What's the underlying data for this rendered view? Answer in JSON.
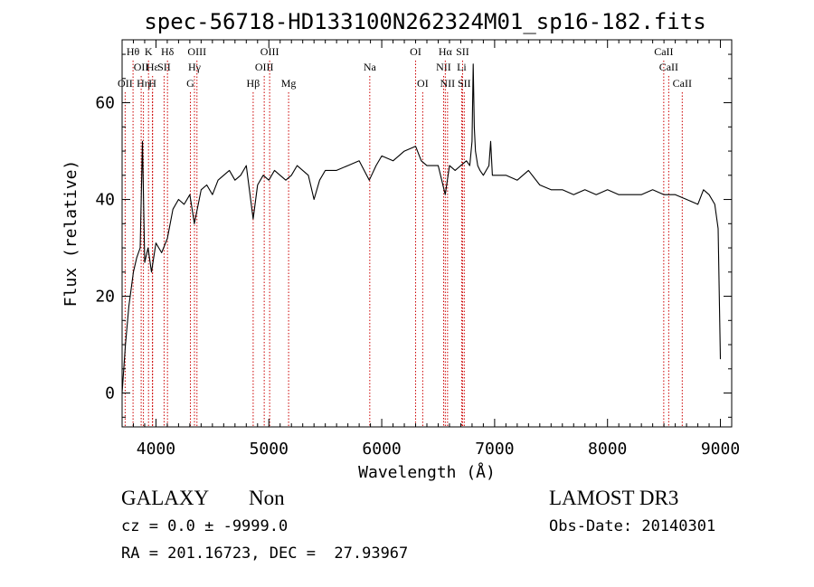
{
  "chart_data": {
    "type": "line",
    "title": "spec-56718-HD133100N262324M01_sp16-182.fits",
    "xlabel": "Wavelength (Å)",
    "ylabel": "Flux (relative)",
    "xlim": [
      3700,
      9100
    ],
    "ylim": [
      -7,
      73
    ],
    "xticks": [
      4000,
      5000,
      6000,
      7000,
      8000,
      9000
    ],
    "yticks": [
      0,
      20,
      40,
      60
    ],
    "grid": false,
    "legend": "none",
    "line_color": "#000000",
    "marker_color": "#cc0000",
    "series": [
      {
        "x": [
          3700,
          3730,
          3760,
          3800,
          3830,
          3860,
          3880,
          3900,
          3930,
          3960,
          4000,
          4050,
          4101,
          4150,
          4200,
          4250,
          4300,
          4340,
          4400,
          4450,
          4500,
          4550,
          4600,
          4650,
          4700,
          4750,
          4800,
          4861,
          4900,
          4950,
          5000,
          5050,
          5100,
          5150,
          5200,
          5250,
          5300,
          5350,
          5400,
          5450,
          5500,
          5600,
          5700,
          5800,
          5890,
          5950,
          6000,
          6100,
          6200,
          6300,
          6350,
          6400,
          6500,
          6563,
          6600,
          6650,
          6700,
          6750,
          6780,
          6800,
          6810,
          6820,
          6830,
          6850,
          6870,
          6900,
          6950,
          6965,
          6980,
          7000,
          7100,
          7200,
          7300,
          7400,
          7500,
          7600,
          7700,
          7800,
          7900,
          8000,
          8100,
          8200,
          8300,
          8400,
          8500,
          8600,
          8700,
          8800,
          8850,
          8900,
          8950,
          8980,
          9000
        ],
        "y": [
          0,
          10,
          18,
          25,
          28,
          30,
          52,
          27,
          30,
          25,
          31,
          29,
          32,
          38,
          40,
          39,
          41,
          35,
          42,
          43,
          41,
          44,
          45,
          46,
          44,
          45,
          47,
          36,
          43,
          45,
          44,
          46,
          45,
          44,
          45,
          47,
          46,
          45,
          40,
          44,
          46,
          46,
          47,
          48,
          44,
          47,
          49,
          48,
          50,
          51,
          48,
          47,
          47,
          41,
          47,
          46,
          47,
          48,
          47,
          52,
          68,
          55,
          50,
          47,
          46,
          45,
          47,
          52,
          45,
          45,
          45,
          44,
          46,
          43,
          42,
          42,
          41,
          42,
          41,
          42,
          41,
          41,
          41,
          42,
          41,
          41,
          40,
          39,
          42,
          41,
          39,
          34,
          7
        ]
      }
    ],
    "lines": [
      {
        "label": "OII",
        "x": 3727,
        "tier": 3
      },
      {
        "label": "Hθ",
        "x": 3797,
        "tier": 1
      },
      {
        "label": "OII",
        "x": 3869,
        "tier": 2
      },
      {
        "label": "Hη",
        "x": 3889,
        "tier": 3
      },
      {
        "label": "Hε",
        "x": 3970,
        "tier": 2
      },
      {
        "label": "K",
        "x": 3934,
        "tier": 1
      },
      {
        "label": "H",
        "x": 3969,
        "tier": 3
      },
      {
        "label": "SII",
        "x": 4072,
        "tier": 2
      },
      {
        "label": "Hδ",
        "x": 4102,
        "tier": 1
      },
      {
        "label": "G",
        "x": 4305,
        "tier": 3
      },
      {
        "label": "Hγ",
        "x": 4341,
        "tier": 2
      },
      {
        "label": "OIII",
        "x": 4363,
        "tier": 1
      },
      {
        "label": "Hβ",
        "x": 4861,
        "tier": 3
      },
      {
        "label": "OIII",
        "x": 4959,
        "tier": 2
      },
      {
        "label": "OIII",
        "x": 5007,
        "tier": 1
      },
      {
        "label": "Mg",
        "x": 5175,
        "tier": 3
      },
      {
        "label": "Na",
        "x": 5894,
        "tier": 2
      },
      {
        "label": "OI",
        "x": 6300,
        "tier": 1
      },
      {
        "label": "OI",
        "x": 6363,
        "tier": 3
      },
      {
        "label": "NII",
        "x": 6548,
        "tier": 2
      },
      {
        "label": "Hα",
        "x": 6563,
        "tier": 1
      },
      {
        "label": "NII",
        "x": 6583,
        "tier": 3
      },
      {
        "label": "SII",
        "x": 6716,
        "tier": 1
      },
      {
        "label": "Li",
        "x": 6708,
        "tier": 2
      },
      {
        "label": "SII",
        "x": 6731,
        "tier": 3
      },
      {
        "label": "CaII",
        "x": 8498,
        "tier": 1
      },
      {
        "label": "CaII",
        "x": 8542,
        "tier": 2
      },
      {
        "label": "CaII",
        "x": 8662,
        "tier": 3
      }
    ]
  },
  "info": {
    "class": "GALAXY",
    "subclass": "Non",
    "survey": "LAMOST DR3",
    "cz": "cz = 0.0 ± -9999.0",
    "obs_date": "Obs-Date: 20140301",
    "radec": "RA = 201.16723, DEC =  27.93967"
  }
}
